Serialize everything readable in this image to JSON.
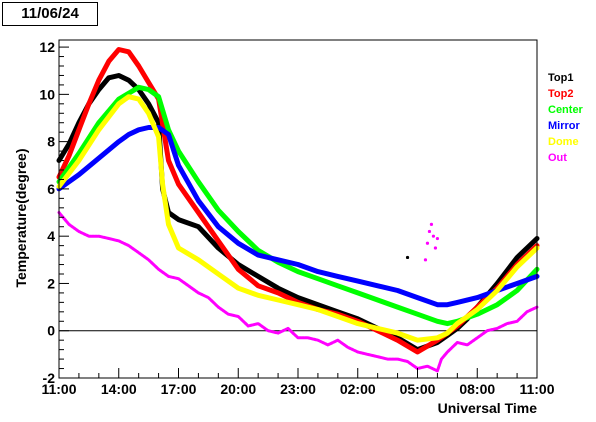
{
  "header": {
    "date_label": "11/06/24"
  },
  "chart_data": {
    "type": "line",
    "title": "11/06/24",
    "xlabel": "Universal Time",
    "ylabel": "Temperature(degree)",
    "xlim": [
      "11:00",
      "11:00 (+1 day)"
    ],
    "ylim": [
      -2,
      12.3
    ],
    "x_tick_labels": [
      "11:00",
      "14:00",
      "17:00",
      "20:00",
      "23:00",
      "02:00",
      "05:00",
      "08:00",
      "11:00"
    ],
    "y_ticks": [
      -2,
      0,
      2,
      4,
      6,
      8,
      10,
      12
    ],
    "zero_line": true,
    "legend_position": "right",
    "x_unit": "hours after 11:00 UT on 11/06/24",
    "series": [
      {
        "name": "Top1",
        "color": "#000000",
        "x": [
          0,
          0.5,
          1,
          1.5,
          2,
          2.5,
          3,
          3.5,
          4,
          4.5,
          5,
          5.2,
          5.5,
          6,
          7,
          8,
          9,
          10,
          11,
          12,
          13,
          14,
          15,
          16,
          17,
          18,
          19,
          19.5,
          20,
          20.5,
          21,
          22,
          23,
          24
        ],
        "y": [
          7.2,
          7.9,
          8.8,
          9.6,
          10.2,
          10.7,
          10.8,
          10.6,
          10.2,
          9.6,
          8.8,
          6.0,
          5.0,
          4.7,
          4.4,
          3.5,
          2.8,
          2.3,
          1.8,
          1.4,
          1.1,
          0.8,
          0.5,
          0.1,
          -0.3,
          -0.8,
          -0.5,
          -0.2,
          0.1,
          0.5,
          1.0,
          2.0,
          3.1,
          3.9
        ]
      },
      {
        "name": "Top2",
        "color": "#ff0000",
        "x": [
          0,
          0.5,
          1,
          1.5,
          2,
          2.5,
          3,
          3.5,
          4,
          4.5,
          5,
          5.5,
          6,
          7,
          8,
          9,
          10,
          11,
          12,
          13,
          14,
          15,
          16,
          17,
          18,
          19,
          19.5,
          20,
          20.5,
          21,
          22,
          23,
          24
        ],
        "y": [
          6.5,
          7.4,
          8.5,
          9.6,
          10.6,
          11.4,
          11.9,
          11.8,
          11.2,
          10.5,
          9.8,
          7.2,
          6.2,
          5.0,
          3.8,
          2.6,
          1.9,
          1.6,
          1.2,
          0.9,
          0.7,
          0.4,
          0.0,
          -0.4,
          -0.9,
          -0.4,
          -0.1,
          0.2,
          0.6,
          1.0,
          1.8,
          2.8,
          3.6
        ]
      },
      {
        "name": "Center",
        "color": "#00ff00",
        "x": [
          0,
          1,
          2,
          3,
          4,
          4.5,
          5,
          5.5,
          6,
          7,
          8,
          9,
          10,
          11,
          12,
          13,
          14,
          15,
          16,
          17,
          18,
          19,
          19.5,
          20,
          21,
          22,
          23,
          24
        ],
        "y": [
          6.3,
          7.5,
          8.8,
          9.8,
          10.3,
          10.2,
          9.9,
          8.5,
          7.6,
          6.3,
          5.1,
          4.2,
          3.4,
          2.9,
          2.5,
          2.2,
          1.9,
          1.6,
          1.3,
          1.0,
          0.7,
          0.4,
          0.3,
          0.4,
          0.7,
          1.1,
          1.7,
          2.6
        ]
      },
      {
        "name": "Mirror",
        "color": "#0000ff",
        "x": [
          0,
          1,
          2,
          3,
          3.5,
          4,
          4.5,
          5,
          5.5,
          6,
          7,
          8,
          9,
          10,
          11,
          12,
          13,
          14,
          15,
          16,
          17,
          18,
          19,
          19.5,
          20,
          21,
          22,
          23,
          24
        ],
        "y": [
          6.0,
          6.6,
          7.3,
          8.0,
          8.3,
          8.5,
          8.6,
          8.6,
          8.3,
          7.0,
          5.5,
          4.4,
          3.7,
          3.2,
          3.0,
          2.8,
          2.5,
          2.3,
          2.1,
          1.9,
          1.7,
          1.4,
          1.1,
          1.1,
          1.2,
          1.4,
          1.7,
          2.0,
          2.3
        ]
      },
      {
        "name": "Dome",
        "color": "#ffff00",
        "x": [
          0,
          1,
          2,
          3,
          3.5,
          4,
          4.5,
          5,
          5.2,
          5.5,
          6,
          7,
          8,
          9,
          10,
          11,
          12,
          13,
          14,
          15,
          16,
          17,
          18,
          19,
          19.5,
          20,
          21,
          22,
          23,
          24
        ],
        "y": [
          6.1,
          7.2,
          8.5,
          9.6,
          9.9,
          9.8,
          9.2,
          8.2,
          6.2,
          4.5,
          3.5,
          3.0,
          2.4,
          1.8,
          1.5,
          1.3,
          1.1,
          0.9,
          0.6,
          0.3,
          0.1,
          -0.1,
          -0.4,
          -0.3,
          -0.1,
          0.3,
          0.9,
          1.7,
          2.7,
          3.5
        ]
      },
      {
        "name": "Out",
        "color": "#ff00ff",
        "x": [
          0,
          0.5,
          1,
          1.5,
          2,
          2.5,
          3,
          3.5,
          4,
          4.5,
          5,
          5.5,
          6,
          6.5,
          7,
          7.5,
          8,
          8.5,
          9,
          9.5,
          10,
          10.5,
          11,
          11.5,
          12,
          12.5,
          13,
          13.5,
          14,
          14.5,
          15,
          15.5,
          16,
          16.5,
          17,
          17.5,
          18,
          18.5,
          19,
          19.2,
          19.5,
          20,
          20.5,
          21,
          21.5,
          22,
          22.5,
          23,
          23.5,
          24
        ],
        "y": [
          5.0,
          4.5,
          4.2,
          4.0,
          4.0,
          3.9,
          3.8,
          3.6,
          3.3,
          3.0,
          2.6,
          2.3,
          2.2,
          1.9,
          1.6,
          1.4,
          1.0,
          0.7,
          0.6,
          0.2,
          0.3,
          0.0,
          -0.1,
          0.1,
          -0.3,
          -0.3,
          -0.4,
          -0.6,
          -0.4,
          -0.7,
          -0.9,
          -1.0,
          -1.1,
          -1.2,
          -1.2,
          -1.3,
          -1.6,
          -1.5,
          -1.7,
          -1.2,
          -0.9,
          -0.5,
          -0.6,
          -0.3,
          0.0,
          0.1,
          0.3,
          0.4,
          0.8,
          1.0
        ]
      }
    ],
    "scatter_outliers": [
      {
        "series": "Out",
        "x": [
          18.4,
          18.5,
          18.6,
          18.7,
          18.8,
          18.9,
          19.0
        ],
        "y": [
          3.0,
          3.7,
          4.2,
          4.5,
          4.0,
          3.5,
          3.9
        ]
      },
      {
        "series": "Top1",
        "x": [
          17.5
        ],
        "y": [
          3.1
        ]
      }
    ]
  }
}
